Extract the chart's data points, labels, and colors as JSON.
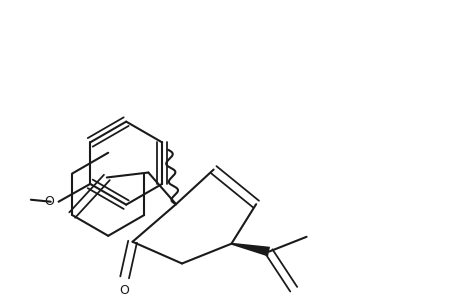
{
  "bg_color": "#ffffff",
  "line_color": "#1a1a1a",
  "line_width": 1.5,
  "wavy_color": "#1a1a1a",
  "bold_bond_color": "#1a1a1a",
  "label_O": "O",
  "label_methoxy": "O",
  "figsize": [
    4.6,
    3.0
  ],
  "dpi": 100
}
